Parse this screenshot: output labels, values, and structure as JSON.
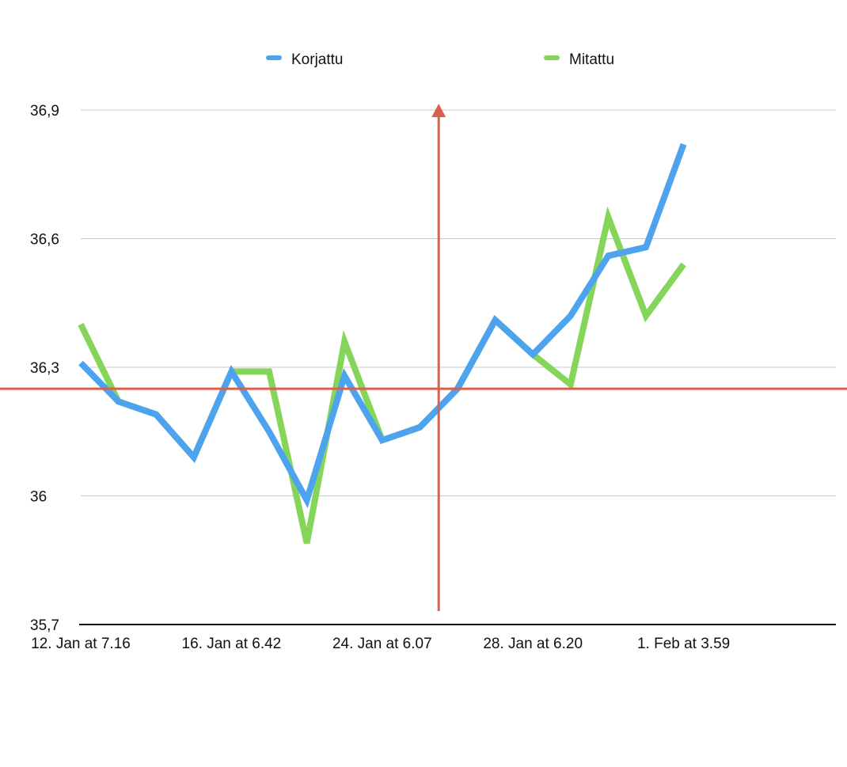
{
  "chart_data": {
    "type": "line",
    "title": "",
    "xlabel": "",
    "ylabel": "",
    "ylim": [
      35.7,
      36.9
    ],
    "y_ticks": [
      {
        "value": 36.9,
        "label": "36,9"
      },
      {
        "value": 36.6,
        "label": "36,6"
      },
      {
        "value": 36.3,
        "label": "36,3"
      },
      {
        "value": 36.0,
        "label": "36"
      },
      {
        "value": 35.7,
        "label": "35,7"
      }
    ],
    "x_tick_labels": [
      {
        "index": 0,
        "label": "12. Jan at 7.16"
      },
      {
        "index": 4,
        "label": "16. Jan at 6.42"
      },
      {
        "index": 8,
        "label": "24. Jan at 6.07"
      },
      {
        "index": 12,
        "label": "28. Jan at 6.20"
      },
      {
        "index": 16,
        "label": "1. Feb at 3.59"
      }
    ],
    "grid": true,
    "legend_position": "top",
    "series": [
      {
        "name": "Korjattu",
        "color": "#4da3ee",
        "values": [
          36.31,
          36.22,
          36.19,
          36.09,
          36.29,
          36.15,
          35.99,
          36.28,
          36.13,
          36.16,
          36.25,
          36.41,
          36.33,
          36.42,
          36.56,
          36.58,
          36.82
        ]
      },
      {
        "name": "Mitattu",
        "color": "#84d55a",
        "values": [
          36.4,
          36.22,
          36.19,
          36.09,
          36.29,
          36.29,
          35.89,
          36.36,
          36.13,
          36.16,
          36.25,
          36.41,
          36.33,
          36.26,
          36.65,
          36.42,
          36.54
        ]
      }
    ],
    "reference_lines": {
      "color": "#d9604c",
      "horizontal_value": 36.25,
      "vertical_between_indices": [
        9,
        10
      ]
    },
    "gridline_color": "#c8c8c8",
    "axis_color": "#111111"
  }
}
